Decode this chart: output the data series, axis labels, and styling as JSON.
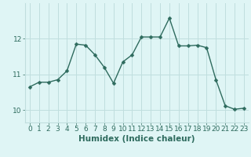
{
  "x": [
    0,
    1,
    2,
    3,
    4,
    5,
    6,
    7,
    8,
    9,
    10,
    11,
    12,
    13,
    14,
    15,
    16,
    17,
    18,
    19,
    20,
    21,
    22,
    23
  ],
  "y": [
    10.65,
    10.78,
    10.78,
    10.85,
    11.1,
    11.85,
    11.82,
    11.55,
    11.2,
    10.75,
    11.35,
    11.55,
    12.05,
    12.05,
    12.05,
    12.58,
    11.8,
    11.8,
    11.82,
    11.75,
    10.85,
    10.12,
    10.02,
    10.05
  ],
  "line_color": "#2e6b5e",
  "marker": "D",
  "marker_size": 2.5,
  "bg_color": "#dff5f5",
  "grid_color": "#c0dede",
  "xlabel": "Humidex (Indice chaleur)",
  "ylabel": "",
  "yticks": [
    10,
    11,
    12
  ],
  "xticks": [
    0,
    1,
    2,
    3,
    4,
    5,
    6,
    7,
    8,
    9,
    10,
    11,
    12,
    13,
    14,
    15,
    16,
    17,
    18,
    19,
    20,
    21,
    22,
    23
  ],
  "ylim": [
    9.65,
    13.0
  ],
  "xlim": [
    -0.5,
    23.5
  ],
  "xlabel_fontsize": 7.5,
  "tick_fontsize": 6.5,
  "line_width": 1.0
}
